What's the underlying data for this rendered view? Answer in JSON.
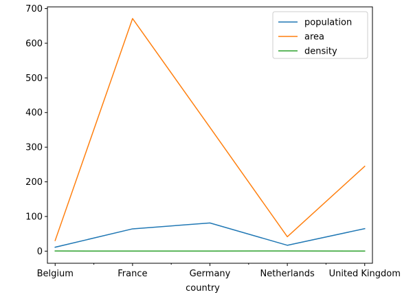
{
  "chart_data": {
    "type": "line",
    "title": "",
    "xlabel": "country",
    "ylabel": "",
    "categories": [
      "Belgium",
      "France",
      "Germany",
      "Netherlands",
      "United Kingdom"
    ],
    "series": [
      {
        "name": "population",
        "color": "#1f77b4",
        "values": [
          11.3,
          64.3,
          81.3,
          16.9,
          64.9
        ]
      },
      {
        "name": "area",
        "color": "#ff7f0e",
        "values": [
          30.5,
          671.3,
          357.1,
          41.5,
          244.8
        ]
      },
      {
        "name": "density",
        "color": "#2ca02c",
        "values": [
          0.37,
          0.1,
          0.23,
          0.41,
          0.27
        ]
      }
    ],
    "ylim": [
      -35,
      705
    ],
    "yticks": [
      0,
      100,
      200,
      300,
      400,
      500,
      600,
      700
    ],
    "grid": false,
    "legend_position": "top-right"
  }
}
